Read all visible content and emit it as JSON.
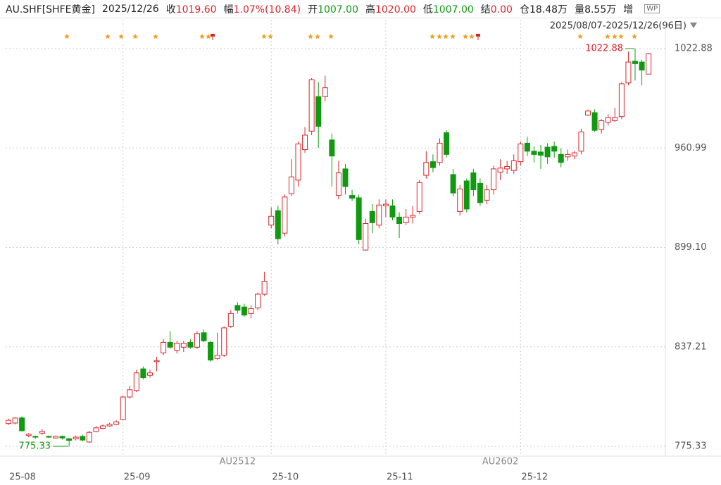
{
  "header": {
    "symbol": "AU.SHF[SHFE黄金]",
    "date": "2025/12/26",
    "items": [
      {
        "label": "收",
        "value": "1019.60",
        "color": "#d9262b"
      },
      {
        "label": "幅",
        "value": "1.07%(10.84)",
        "color": "#d9262b"
      },
      {
        "label": "开",
        "value": "1007.00",
        "color": "#119911"
      },
      {
        "label": "高",
        "value": "1020.00",
        "color": "#d9262b"
      },
      {
        "label": "低",
        "value": "1007.00",
        "color": "#119911"
      },
      {
        "label": "结",
        "value": "0.00",
        "color": "#d9262b"
      },
      {
        "label": "仓",
        "value": "18.48万",
        "color": "#222"
      },
      {
        "label": "量",
        "value": "8.55万",
        "color": "#222"
      }
    ],
    "extra": "增"
  },
  "chart_data": {
    "type": "candlestick",
    "range": "2025/08/07-2025/12/26(96日)",
    "up_color": "#d9262b",
    "down_color": "#119911",
    "grid": true,
    "ylim": [
      770.51,
      1039.97
    ],
    "yticks": [
      775.33,
      837.21,
      {
        "value": 899.1,
        "label": "899.10"
      },
      960.99,
      1022.88
    ],
    "xticks": [
      {
        "value": 0,
        "label": "25-08"
      },
      {
        "value": 17,
        "label": "25-09"
      },
      {
        "value": 39,
        "label": "25-10"
      },
      {
        "value": 56,
        "label": "25-11"
      },
      {
        "value": 76,
        "label": "25-12"
      }
    ],
    "contracts": [
      {
        "index": 34,
        "label": "AU2512"
      },
      {
        "index": 73,
        "label": "AU2602"
      }
    ],
    "max_marker": {
      "index": 93,
      "value": 1022.88
    },
    "min_marker": {
      "index": 9,
      "value": 775.33
    },
    "open": [
      789.5,
      789.8,
      793,
      782,
      781.5,
      783.5,
      781.5,
      780.5,
      781.5,
      780,
      780,
      781.5,
      778,
      784.5,
      786.5,
      788,
      789,
      792,
      806,
      810,
      823.5,
      819.5,
      828,
      833.5,
      840,
      835,
      837,
      840,
      837,
      846,
      840,
      830,
      832,
      850,
      863,
      862,
      858,
      861.5,
      870,
      913,
      922,
      908,
      932.5,
      941,
      960,
      971.5,
      993,
      993,
      966,
      931.5,
      948,
      931.5,
      930,
      897.5,
      921.5,
      913,
      925,
      925,
      918,
      914.5,
      918,
      921.5,
      944,
      952.5,
      952,
      970.5,
      944.5,
      921.5,
      940.5,
      945.5,
      939,
      928.5,
      935,
      946,
      948,
      947,
      952.5,
      964,
      959,
      958.5,
      961.5,
      962,
      957,
      955.5,
      956,
      959,
      981.5,
      983,
      972.5,
      977,
      978,
      980.5,
      1001.5,
      1015,
      1014.5,
      1007
    ],
    "high": [
      792.5,
      793.5,
      794,
      783.5,
      782,
      786,
      782,
      782,
      782,
      780.5,
      782,
      782.5,
      785,
      788,
      789,
      790,
      791.5,
      807,
      813,
      823,
      825,
      823,
      831,
      842,
      847,
      841,
      841,
      842,
      847,
      848,
      841,
      846,
      850,
      860,
      865,
      864,
      863,
      871,
      884,
      924,
      925,
      932,
      954,
      965,
      974,
      1004.5,
      1002,
      1006,
      970,
      953,
      951,
      935,
      932,
      917,
      926,
      929,
      929,
      929,
      921,
      923,
      925,
      941,
      959,
      957,
      967,
      972,
      948,
      938,
      942,
      948,
      942,
      938,
      950,
      954,
      953,
      957,
      965,
      968,
      962,
      963,
      964,
      965,
      961,
      960,
      959,
      973,
      985,
      985,
      979,
      982,
      986,
      1002,
      1021,
      1022.88,
      1016,
      1020
    ],
    "low": [
      788.5,
      789,
      784.5,
      781,
      780,
      782.5,
      780.5,
      780,
      779.5,
      775.33,
      779,
      778.5,
      777.5,
      784,
      786,
      787.5,
      788.5,
      791.5,
      805,
      809,
      817,
      818,
      822,
      832,
      836,
      833,
      834,
      836,
      836,
      840,
      828,
      829,
      831,
      849,
      858,
      856,
      855,
      860,
      869,
      911,
      901,
      906,
      931,
      937,
      958,
      969,
      961,
      990,
      937,
      929,
      932,
      928,
      901,
      897,
      908,
      911,
      918,
      916,
      905,
      913,
      914,
      920,
      942,
      946,
      950,
      955,
      931,
      919,
      921,
      931,
      925,
      926,
      932,
      941,
      945,
      945,
      950,
      956,
      952,
      948,
      951,
      955,
      949,
      953,
      954,
      957,
      981,
      971,
      970,
      975,
      977,
      979,
      1000,
      1003,
      1000,
      1007
    ],
    "close": [
      791.5,
      792.9,
      785,
      782.8,
      781,
      784.5,
      781,
      781.5,
      780.5,
      779,
      781,
      779.2,
      784,
      786.8,
      788,
      789,
      790.5,
      806,
      810.5,
      821,
      818,
      821,
      828.6,
      840,
      837,
      839.5,
      839.5,
      837,
      845.5,
      841,
      829,
      832,
      849,
      858,
      860,
      857,
      861,
      870,
      878,
      918.5,
      904.5,
      930.5,
      943,
      963.5,
      969,
      1003.5,
      974.5,
      998.5,
      956,
      945.5,
      937,
      929.7,
      904,
      914,
      914.5,
      925.5,
      926,
      918,
      914,
      918,
      919,
      939.5,
      952,
      948.8,
      964,
      957,
      933,
      935.5,
      923,
      935,
      927,
      935,
      948,
      948.5,
      949.5,
      953,
      963.5,
      959,
      957,
      956.5,
      955.5,
      959,
      952,
      957,
      958,
      971,
      984,
      972,
      978,
      980,
      980,
      1001,
      1014.5,
      1013.5,
      1009.5,
      1019.6
    ]
  }
}
